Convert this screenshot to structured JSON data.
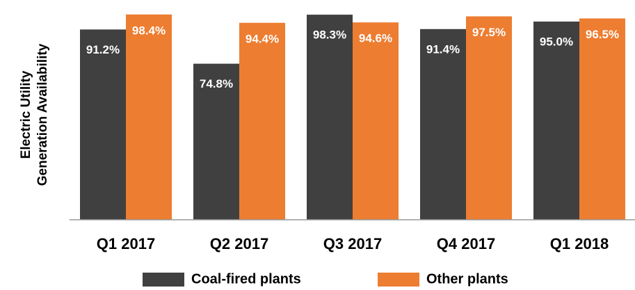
{
  "chart_data": {
    "type": "bar",
    "y_label": [
      "Electric Utility",
      "Generation Availability"
    ],
    "categories": [
      "Q1 2017",
      "Q2 2017",
      "Q3 2017",
      "Q4 2017",
      "Q1 2018"
    ],
    "series": [
      {
        "name": "Coal-fired plants",
        "color": "#404040",
        "values": [
          91.2,
          74.8,
          98.3,
          91.4,
          95.0
        ],
        "value_labels": [
          "91.2%",
          "74.8%",
          "98.3%",
          "91.4%",
          "95.0%"
        ]
      },
      {
        "name": "Other plants",
        "color": "#ED7D31",
        "values": [
          98.4,
          94.4,
          94.6,
          97.5,
          96.5
        ],
        "value_labels": [
          "98.4%",
          "94.4%",
          "94.6%",
          "97.5%",
          "96.5%"
        ]
      }
    ],
    "ylim": [
      0,
      100
    ],
    "legend": "bottom"
  }
}
